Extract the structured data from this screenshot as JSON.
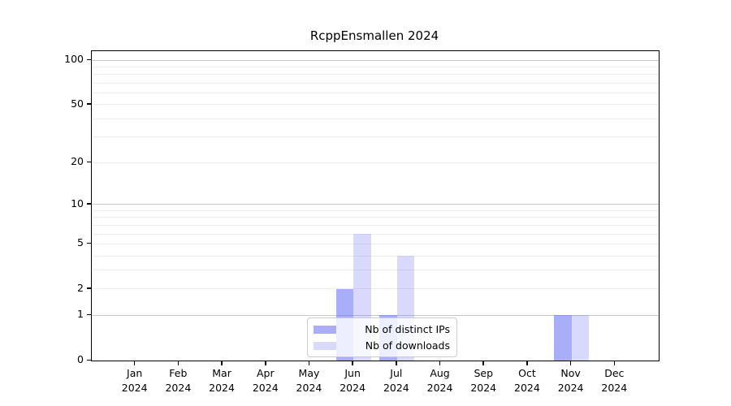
{
  "chart_data": {
    "type": "bar",
    "title": "RcppEnsmallen 2024",
    "categories": [
      "Jan",
      "Feb",
      "Mar",
      "Apr",
      "May",
      "Jun",
      "Jul",
      "Aug",
      "Sep",
      "Oct",
      "Nov",
      "Dec"
    ],
    "year_label": "2024",
    "series": [
      {
        "name": "Nb of distinct IPs",
        "color": "rgba(100,105,243,0.55)",
        "values": [
          0,
          0,
          0,
          0,
          0,
          2,
          1,
          0,
          0,
          0,
          1,
          0
        ]
      },
      {
        "name": "Nb of downloads",
        "color": "rgba(100,105,243,0.25)",
        "values": [
          0,
          0,
          0,
          0,
          0,
          6,
          4,
          0,
          0,
          0,
          1,
          0
        ]
      }
    ],
    "yscale": "log1p",
    "ylim": [
      0,
      115
    ],
    "yticks": [
      0,
      1,
      2,
      5,
      10,
      20,
      50,
      100
    ],
    "minor_gridlines": [
      2,
      3,
      4,
      5,
      6,
      7,
      8,
      9,
      20,
      30,
      40,
      50,
      60,
      70,
      80,
      90
    ],
    "major_gridlines": [
      1,
      10,
      100
    ],
    "grid": "on",
    "legend_position": "inside-bottom-center",
    "colors": {
      "distinct_ips_bar": "#aaacf9",
      "downloads_bar": "#d9dbfa",
      "grid_minor": "#ececec",
      "grid_major": "#c8c8c8",
      "axis": "#000000"
    }
  }
}
